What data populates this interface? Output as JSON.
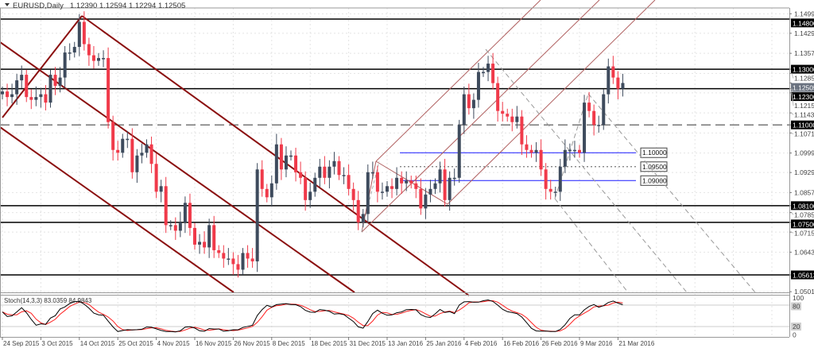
{
  "header": {
    "symbol": "EURUSD,Daily",
    "ohlc": "1.12390 1.12594 1.12294 1.12505",
    "menu_icon": "triangle-down-icon"
  },
  "stoch_label": "Stoch(14,3,3) 83.0359 84.9843",
  "colors": {
    "bull": "#3e4b5d",
    "bear": "#f03a4a",
    "channel": "#8b1010",
    "thin_channel": "#b06060",
    "blue_level": "#1a1aff",
    "stoch_main": "#000000",
    "stoch_signal": "#ff2020"
  },
  "chart_data": {
    "type": "candlestick",
    "symbol": "EURUSD",
    "timeframe": "Daily",
    "ylim": [
      1.0501,
      1.1499
    ],
    "y_ticks": [
      "1.14990",
      "1.14290",
      "1.13570",
      "1.12850",
      "1.12150",
      "1.11430",
      "1.10710",
      "1.09990",
      "1.09290",
      "1.08570",
      "1.07850",
      "1.07150",
      "1.06430",
      "1.05010"
    ],
    "x_ticks": [
      {
        "bar": 0,
        "label": "24 Sep 2015"
      },
      {
        "bar": 8,
        "label": "3 Oct 2015"
      },
      {
        "bar": 16,
        "label": "14 Oct 2015"
      },
      {
        "bar": 24,
        "label": "25 Oct 2015"
      },
      {
        "bar": 32,
        "label": "4 Nov 2015"
      },
      {
        "bar": 40,
        "label": "16 Nov 2015"
      },
      {
        "bar": 48,
        "label": "26 Nov 2015"
      },
      {
        "bar": 56,
        "label": "8 Dec 2015"
      },
      {
        "bar": 64,
        "label": "18 Dec 2015"
      },
      {
        "bar": 72,
        "label": "31 Dec 2015"
      },
      {
        "bar": 80,
        "label": "13 Jan 2016"
      },
      {
        "bar": 88,
        "label": "25 Jan 2016"
      },
      {
        "bar": 96,
        "label": "4 Feb 2016"
      },
      {
        "bar": 104,
        "label": "16 Feb 2016"
      },
      {
        "bar": 112,
        "label": "26 Feb 2016"
      },
      {
        "bar": 120,
        "label": "9 Mar 2016"
      },
      {
        "bar": 128,
        "label": "21 Mar 2016"
      }
    ],
    "closes": [
      1.122,
      1.12,
      1.121,
      1.126,
      1.128,
      1.12,
      1.119,
      1.12,
      1.121,
      1.118,
      1.128,
      1.124,
      1.127,
      1.136,
      1.136,
      1.138,
      1.147,
      1.139,
      1.135,
      1.133,
      1.134,
      1.134,
      1.111,
      1.101,
      1.1,
      1.105,
      1.105,
      1.093,
      1.099,
      1.1,
      1.103,
      1.096,
      1.086,
      1.088,
      1.074,
      1.074,
      1.072,
      1.075,
      1.082,
      1.073,
      1.067,
      1.068,
      1.066,
      1.074,
      1.065,
      1.064,
      1.062,
      1.062,
      1.06,
      1.058,
      1.064,
      1.062,
      1.061,
      1.094,
      1.087,
      1.084,
      1.089,
      1.103,
      1.094,
      1.099,
      1.099,
      1.093,
      1.091,
      1.083,
      1.086,
      1.091,
      1.095,
      1.091,
      1.095,
      1.097,
      1.092,
      1.092,
      1.087,
      1.083,
      1.075,
      1.078,
      1.093,
      1.093,
      1.086,
      1.086,
      1.088,
      1.087,
      1.091,
      1.089,
      1.09,
      1.089,
      1.087,
      1.08,
      1.085,
      1.087,
      1.089,
      1.094,
      1.083,
      1.091,
      1.091,
      1.11,
      1.121,
      1.116,
      1.119,
      1.129,
      1.129,
      1.132,
      1.125,
      1.115,
      1.114,
      1.113,
      1.111,
      1.113,
      1.103,
      1.101,
      1.1,
      1.101,
      1.094,
      1.087,
      1.086,
      1.086,
      1.095,
      1.101,
      1.101,
      1.101,
      1.1,
      1.118,
      1.115,
      1.11,
      1.11,
      1.121,
      1.131,
      1.127,
      1.123,
      1.12505
    ],
    "current_price": "1.12505",
    "horizontal_levels": [
      {
        "price": 1.148,
        "label": "1.14800",
        "style": "solid"
      },
      {
        "price": 1.13,
        "label": "1.13000",
        "style": "solid"
      },
      {
        "price": 1.123,
        "label": "1.12300",
        "style": "solid"
      },
      {
        "price": 1.11,
        "label": "1.11000",
        "style": "dashed"
      },
      {
        "price": 1.081,
        "label": "1.08100",
        "style": "solid"
      },
      {
        "price": 1.075,
        "label": "1.07500",
        "style": "solid"
      },
      {
        "price": 1.05613,
        "label": "1.05613",
        "style": "solid"
      }
    ],
    "short_levels": [
      {
        "price": 1.1,
        "label": "1.10000",
        "style": "blue"
      },
      {
        "price": 1.095,
        "label": "1.09500",
        "style": "dotted"
      },
      {
        "price": 1.09,
        "label": "1.09000",
        "style": "blue"
      }
    ],
    "stochastic": {
      "k": 14,
      "d": 3,
      "slowing": 3,
      "levels": [
        "100",
        "80",
        "20",
        "0"
      ]
    }
  }
}
